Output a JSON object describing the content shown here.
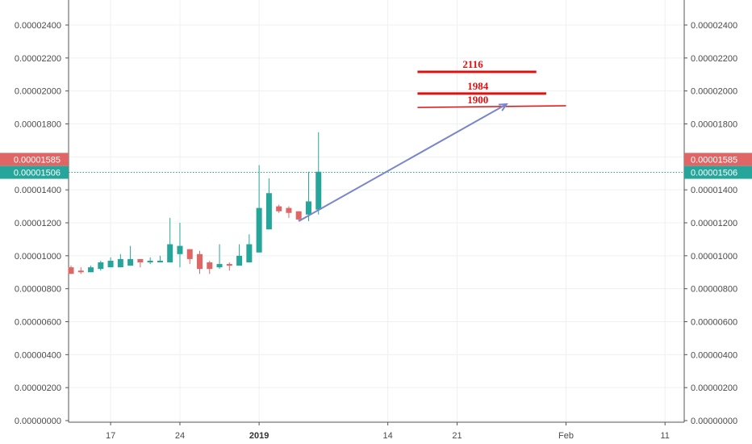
{
  "chart_data": {
    "type": "candlestick",
    "y_axis": {
      "ylim": [
        0,
        2.6e-05
      ],
      "ticks": [
        0,
        2e-06,
        4e-06,
        6e-06,
        8e-06,
        1e-05,
        1.2e-05,
        1.4e-05,
        1.6e-05,
        1.8e-05,
        2e-05,
        2.2e-05,
        2.4e-05
      ],
      "tick_labels": [
        "0.00000000",
        "0.00000200",
        "0.00000400",
        "0.00000600",
        "0.00000800",
        "0.00001000",
        "0.00001200",
        "0.00001400",
        "0.00001600",
        "0.00001800",
        "0.00002000",
        "0.00002200",
        "0.00002400"
      ],
      "sides": "left-and-right",
      "grid": true
    },
    "x_axis": {
      "start_date": "2018-12-13",
      "end_date": "2019-02-18",
      "ticks": [
        {
          "date": "2018-12-17",
          "label": "17",
          "bold": false
        },
        {
          "date": "2018-12-24",
          "label": "24",
          "bold": false
        },
        {
          "date": "2019-01-01",
          "label": "2019",
          "bold": true
        },
        {
          "date": "2019-01-14",
          "label": "14",
          "bold": false
        },
        {
          "date": "2019-01-21",
          "label": "21",
          "bold": false
        },
        {
          "date": "2019-02-01",
          "label": "Feb",
          "bold": false
        },
        {
          "date": "2019-02-11",
          "label": "11",
          "bold": false
        }
      ],
      "grid": true
    },
    "colors": {
      "up": "#26a69a",
      "down": "#e06666",
      "projection_arrow": "#7986cb",
      "target_lines": "#e01010",
      "current_price": "#26a69a",
      "previous_close": "#e06666"
    },
    "candles": [
      {
        "date": "2018-12-13",
        "open": 9.3e-06,
        "high": 9.4e-06,
        "low": 8.9e-06,
        "close": 8.9e-06
      },
      {
        "date": "2018-12-14",
        "open": 9.1e-06,
        "high": 9.3e-06,
        "low": 8.9e-06,
        "close": 9e-06
      },
      {
        "date": "2018-12-15",
        "open": 9e-06,
        "high": 9.4e-06,
        "low": 9e-06,
        "close": 9.3e-06
      },
      {
        "date": "2018-12-16",
        "open": 9.2e-06,
        "high": 9.7e-06,
        "low": 9.1e-06,
        "close": 9.6e-06
      },
      {
        "date": "2018-12-17",
        "open": 9.3e-06,
        "high": 9.9e-06,
        "low": 9.3e-06,
        "close": 9.7e-06
      },
      {
        "date": "2018-12-18",
        "open": 9.3e-06,
        "high": 1.01e-05,
        "low": 9.3e-06,
        "close": 9.8e-06
      },
      {
        "date": "2018-12-19",
        "open": 9.4e-06,
        "high": 1.06e-05,
        "low": 9.4e-06,
        "close": 9.8e-06
      },
      {
        "date": "2018-12-20",
        "open": 9.8e-06,
        "high": 9.8e-06,
        "low": 9.3e-06,
        "close": 9.6e-06
      },
      {
        "date": "2018-12-21",
        "open": 9.6e-06,
        "high": 9.9e-06,
        "low": 9.5e-06,
        "close": 9.7e-06
      },
      {
        "date": "2018-12-22",
        "open": 9.6e-06,
        "high": 1e-05,
        "low": 9.6e-06,
        "close": 9.7e-06
      },
      {
        "date": "2018-12-23",
        "open": 9.6e-06,
        "high": 1.23e-05,
        "low": 9.6e-06,
        "close": 1.07e-05
      },
      {
        "date": "2018-12-24",
        "open": 1.01e-05,
        "high": 1.2e-05,
        "low": 9.3e-06,
        "close": 1.06e-05
      },
      {
        "date": "2018-12-25",
        "open": 1.04e-05,
        "high": 1.04e-05,
        "low": 9.5e-06,
        "close": 9.8e-06
      },
      {
        "date": "2018-12-26",
        "open": 1.01e-05,
        "high": 1.03e-05,
        "low": 8.9e-06,
        "close": 9.2e-06
      },
      {
        "date": "2018-12-27",
        "open": 9.6e-06,
        "high": 9.7e-06,
        "low": 8.9e-06,
        "close": 9.2e-06
      },
      {
        "date": "2018-12-28",
        "open": 9.3e-06,
        "high": 1.07e-05,
        "low": 9.2e-06,
        "close": 9.5e-06
      },
      {
        "date": "2018-12-29",
        "open": 9.5e-06,
        "high": 9.6e-06,
        "low": 9.1e-06,
        "close": 9.4e-06
      },
      {
        "date": "2018-12-30",
        "open": 9.4e-06,
        "high": 1.07e-05,
        "low": 9.4e-06,
        "close": 1e-05
      },
      {
        "date": "2018-12-31",
        "open": 9.6e-06,
        "high": 1.13e-05,
        "low": 9.6e-06,
        "close": 1.07e-05
      },
      {
        "date": "2019-01-01",
        "open": 1.02e-05,
        "high": 1.55e-05,
        "low": 1.02e-05,
        "close": 1.29e-05
      },
      {
        "date": "2019-01-02",
        "open": 1.16e-05,
        "high": 1.47e-05,
        "low": 1.16e-05,
        "close": 1.38e-05
      },
      {
        "date": "2019-01-03",
        "open": 1.3e-05,
        "high": 1.31e-05,
        "low": 1.26e-05,
        "close": 1.27e-05
      },
      {
        "date": "2019-01-04",
        "open": 1.29e-05,
        "high": 1.3e-05,
        "low": 1.23e-05,
        "close": 1.26e-05
      },
      {
        "date": "2019-01-05",
        "open": 1.27e-05,
        "high": 1.27e-05,
        "low": 1.21e-05,
        "close": 1.22e-05
      },
      {
        "date": "2019-01-06",
        "open": 1.25e-05,
        "high": 1.51e-05,
        "low": 1.21e-05,
        "close": 1.33e-05
      },
      {
        "date": "2019-01-07",
        "open": 1.28e-05,
        "high": 1.75e-05,
        "low": 1.25e-05,
        "close": 1.51e-05
      }
    ],
    "annotations": {
      "target_levels": [
        {
          "label": "2116",
          "price": 2.116e-05,
          "start_date": "2019-01-17",
          "end_date": "2019-01-29"
        },
        {
          "label": "1984",
          "price": 1.984e-05,
          "start_date": "2019-01-17",
          "end_date": "2019-01-30"
        },
        {
          "label": "1900",
          "price": 1.9e-05,
          "start_date": "2019-01-17",
          "end_date": "2019-02-01",
          "slanted_end_price": 1.91e-05
        }
      ],
      "projection_arrow": {
        "from": {
          "date": "2019-01-05",
          "price": 1.21e-05
        },
        "to": {
          "date": "2019-01-26",
          "price": 1.92e-05
        }
      },
      "price_lines": [
        {
          "label": "0.00001585",
          "price": 1.585e-05,
          "kind": "previous-close"
        },
        {
          "label": "0.00001506",
          "price": 1.506e-05,
          "kind": "current-price"
        }
      ]
    }
  }
}
